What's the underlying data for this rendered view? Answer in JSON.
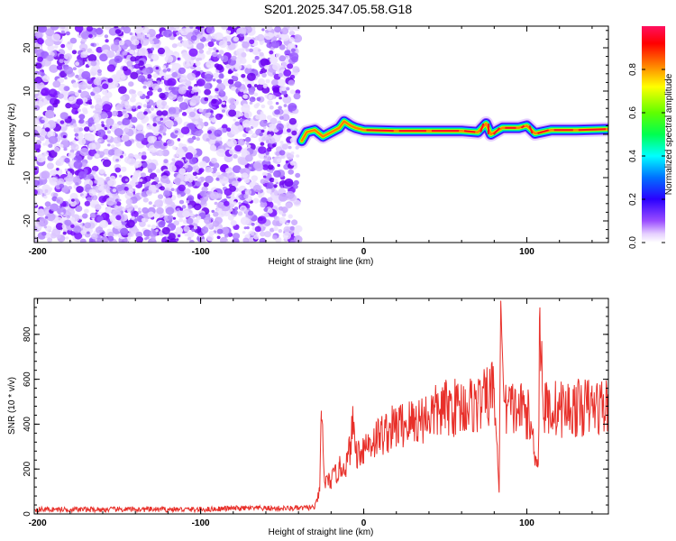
{
  "figure_title": "S201.2025.347.05.58.G18",
  "chart_data": [
    {
      "type": "heatmap",
      "title": "",
      "xlabel": "Height of straight line (km)",
      "ylabel": "Frequency (Hz)",
      "xlim": [
        -202,
        150
      ],
      "ylim": [
        -25,
        25
      ],
      "x_ticks": [
        "-200",
        "-100",
        "0",
        "100"
      ],
      "x_tick_values": [
        -200,
        -100,
        0,
        100
      ],
      "y_ticks": [
        "-20",
        "-10",
        "0",
        "10",
        "20"
      ],
      "y_tick_values": [
        -20,
        -10,
        0,
        10,
        20
      ],
      "colorbar": {
        "label": "Normalized spectral amplitude",
        "range": [
          0,
          1
        ],
        "ticks": [
          "0.0",
          "0.2",
          "0.4",
          "0.6",
          "0.8"
        ],
        "tick_values": [
          0,
          0.2,
          0.4,
          0.6,
          0.8
        ],
        "colormap": "rainbow (white-violet-blue-cyan-green-yellow-red-pink)"
      },
      "regions": [
        {
          "x_range": [
            -202,
            -40
          ],
          "description_values": "scattered noise, amplitude 0.0-0.2 across all frequencies"
        },
        {
          "x_range": [
            -40,
            150
          ],
          "description_values": "narrow band near frequency 1 Hz, amplitude up to 1.0"
        }
      ],
      "signal_band": [
        {
          "x": -38,
          "f": -1.5
        },
        {
          "x": -35,
          "f": 0.5
        },
        {
          "x": -30,
          "f": 1.0
        },
        {
          "x": -25,
          "f": -0.5
        },
        {
          "x": -20,
          "f": 0.5
        },
        {
          "x": -15,
          "f": 1.5
        },
        {
          "x": -12,
          "f": 3.0
        },
        {
          "x": -8,
          "f": 2.0
        },
        {
          "x": -5,
          "f": 1.5
        },
        {
          "x": 0,
          "f": 1.0
        },
        {
          "x": 20,
          "f": 0.8
        },
        {
          "x": 40,
          "f": 0.8
        },
        {
          "x": 60,
          "f": 0.8
        },
        {
          "x": 70,
          "f": 0.5
        },
        {
          "x": 75,
          "f": 2.5
        },
        {
          "x": 78,
          "f": 0.0
        },
        {
          "x": 85,
          "f": 1.5
        },
        {
          "x": 95,
          "f": 1.5
        },
        {
          "x": 100,
          "f": 2.0
        },
        {
          "x": 105,
          "f": 0.2
        },
        {
          "x": 115,
          "f": 1.0
        },
        {
          "x": 130,
          "f": 1.0
        },
        {
          "x": 150,
          "f": 1.2
        }
      ],
      "grid": false
    },
    {
      "type": "line",
      "title": "",
      "xlabel": "Height of straight line (km)",
      "ylabel": "SNR (10 * v/v)",
      "xlim": [
        -202,
        150
      ],
      "ylim": [
        0,
        960
      ],
      "x_ticks": [
        "-200",
        "-100",
        "0",
        "100"
      ],
      "x_tick_values": [
        -200,
        -100,
        0,
        100
      ],
      "y_ticks": [
        "0",
        "200",
        "400",
        "600",
        "800"
      ],
      "y_tick_values": [
        0,
        200,
        400,
        600,
        800
      ],
      "series": [
        {
          "color": "#e8302a",
          "x": [
            -202,
            -180,
            -160,
            -140,
            -120,
            -100,
            -80,
            -60,
            -40,
            -30,
            -27,
            -26,
            -24,
            -20,
            -15,
            -10,
            -6,
            -5,
            -2,
            0,
            10,
            20,
            30,
            40,
            50,
            60,
            70,
            75,
            80,
            83,
            84,
            86,
            90,
            100,
            107,
            108,
            110,
            120,
            130,
            140,
            150
          ],
          "values": [
            20,
            20,
            20,
            20,
            20,
            20,
            25,
            25,
            25,
            30,
            100,
            460,
            140,
            150,
            200,
            230,
            410,
            270,
            280,
            300,
            350,
            390,
            410,
            440,
            470,
            480,
            490,
            510,
            560,
            95,
            950,
            500,
            470,
            460,
            220,
            920,
            470,
            470,
            470,
            480,
            480
          ]
        }
      ],
      "grid": false
    }
  ],
  "colors": {
    "snr_line": "#e8302a",
    "noise_violet": "#7a10ff",
    "noise_light": "#c9a7ff"
  }
}
